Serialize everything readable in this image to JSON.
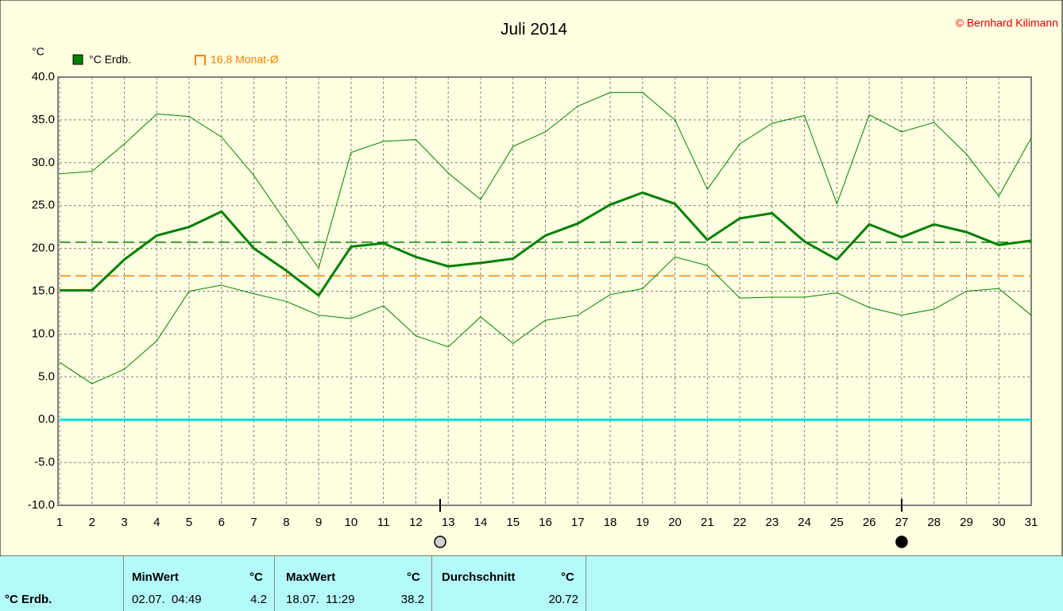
{
  "chart_data": {
    "type": "line",
    "title": "Juli 2014",
    "copyright": "© Bernhard Kilimann",
    "y_unit": "°C",
    "x": [
      1,
      2,
      3,
      4,
      5,
      6,
      7,
      8,
      9,
      10,
      11,
      12,
      13,
      14,
      15,
      16,
      17,
      18,
      19,
      20,
      21,
      22,
      23,
      24,
      25,
      26,
      27,
      28,
      29,
      30,
      31
    ],
    "xlim": [
      1,
      31
    ],
    "xticks": [
      1,
      2,
      3,
      4,
      5,
      6,
      7,
      8,
      9,
      10,
      11,
      12,
      13,
      14,
      15,
      16,
      17,
      18,
      19,
      20,
      21,
      22,
      23,
      24,
      25,
      26,
      27,
      28,
      29,
      30,
      31
    ],
    "ylim": [
      -10,
      40
    ],
    "yticks": [
      {
        "value": -10,
        "label": "-10.0"
      },
      {
        "value": -5,
        "label": "-5.0"
      },
      {
        "value": 0,
        "label": "0.0"
      },
      {
        "value": 5,
        "label": "5.0"
      },
      {
        "value": 10,
        "label": "10.0"
      },
      {
        "value": 15,
        "label": "15.0"
      },
      {
        "value": 20,
        "label": "20.0"
      },
      {
        "value": 25,
        "label": "25.0"
      },
      {
        "value": 30,
        "label": "30.0"
      },
      {
        "value": 35,
        "label": "35.0"
      },
      {
        "value": 40,
        "label": "40.0"
      }
    ],
    "grid": true,
    "series": [
      {
        "name": "°C Erdb.",
        "color": "#008000",
        "width": 3,
        "values": [
          15.1,
          15.1,
          18.7,
          21.5,
          22.5,
          24.3,
          20.0,
          17.4,
          14.5,
          20.2,
          20.6,
          19.0,
          17.9,
          18.3,
          18.8,
          21.5,
          22.9,
          25.1,
          26.5,
          25.2,
          21.0,
          23.5,
          24.1,
          20.8,
          18.7,
          22.8,
          21.3,
          22.8,
          21.9,
          20.4,
          20.9
        ]
      },
      {
        "color": "#008000",
        "width": 1,
        "values": [
          28.7,
          29.0,
          32.2,
          35.7,
          35.4,
          33.0,
          28.5,
          23.0,
          17.7,
          31.2,
          32.5,
          32.7,
          28.8,
          25.7,
          31.9,
          33.6,
          36.6,
          38.2,
          38.2,
          35.0,
          26.9,
          32.2,
          34.6,
          35.5,
          25.2,
          35.6,
          33.6,
          34.7,
          31.0,
          26.1,
          32.9
        ]
      },
      {
        "color": "#008000",
        "width": 1,
        "values": [
          6.7,
          4.2,
          5.9,
          9.2,
          15.0,
          15.7,
          14.7,
          13.8,
          12.2,
          11.8,
          13.3,
          9.8,
          8.5,
          12.0,
          8.9,
          11.6,
          12.2,
          14.6,
          15.3,
          19.0,
          18.0,
          14.2,
          14.3,
          14.3,
          14.8,
          13.1,
          12.2,
          12.9,
          15.0,
          15.3,
          12.2
        ]
      }
    ],
    "reference_lines": [
      {
        "value": 20.72,
        "color": "#008000",
        "dashed": true
      },
      {
        "value": 16.8,
        "color": "#ff8000",
        "dashed": true,
        "label": "16.8 Monat-Ø"
      },
      {
        "value": 0,
        "color": "#00e0e0",
        "dashed": false
      }
    ],
    "moon_markers": [
      {
        "x": 12.75,
        "fill": "#d0d0d0"
      },
      {
        "x": 27,
        "fill": "#000000"
      }
    ]
  },
  "table": {
    "header": [
      "MinWert",
      "°C",
      "MaxWert",
      "°C",
      "Durchschnitt",
      "°C"
    ],
    "row": [
      "°C Erdb.",
      "02.07.  04:49",
      "4.2",
      "18.07.  11:29",
      "38.2",
      "20.72"
    ]
  }
}
